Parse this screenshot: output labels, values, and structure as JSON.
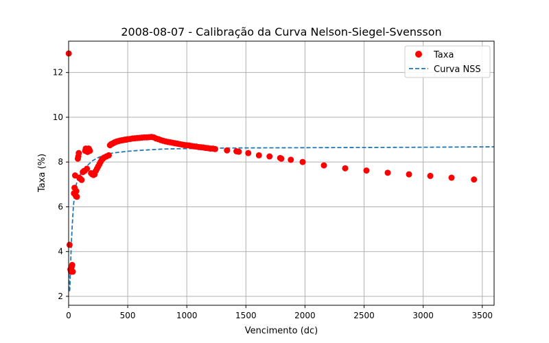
{
  "chart_data": {
    "type": "scatter",
    "title": "2008-08-07 - Calibração da Curva Nelson-Siegel-Svensson",
    "xlabel": "Vencimento (dc)",
    "ylabel": "Taxa (%)",
    "xlim": [
      0,
      3600
    ],
    "ylim": [
      1.6,
      13.4
    ],
    "xticks": [
      0,
      500,
      1000,
      1500,
      2000,
      2500,
      3000,
      3500
    ],
    "xtick_labels": [
      "0",
      "500",
      "1000",
      "1500",
      "2000",
      "2500",
      "3000",
      "3500"
    ],
    "yticks": [
      2,
      4,
      6,
      8,
      10,
      12
    ],
    "ytick_labels": [
      "2",
      "4",
      "6",
      "8",
      "10",
      "12"
    ],
    "grid": true,
    "legend": {
      "position": "top-right",
      "entries": [
        "Taxa",
        "Curva NSS"
      ]
    },
    "colors": {
      "scatter": "#ff0000",
      "curve": "#1f77b4"
    },
    "series": [
      {
        "name": "Taxa",
        "kind": "scatter",
        "x": [
          1,
          8,
          15,
          20,
          25,
          30,
          35,
          45,
          50,
          55,
          60,
          65,
          70,
          78,
          82,
          86,
          90,
          100,
          110,
          120,
          130,
          135,
          140,
          145,
          150,
          155,
          160,
          165,
          170,
          175,
          180,
          190,
          200,
          210,
          215,
          220,
          230,
          240,
          250,
          260,
          270,
          280,
          290,
          300,
          320,
          340,
          350,
          360,
          370,
          380,
          390,
          400,
          410,
          420,
          430,
          440,
          450,
          460,
          470,
          480,
          490,
          500,
          520,
          540,
          560,
          580,
          600,
          620,
          640,
          660,
          680,
          700,
          720,
          740,
          760,
          780,
          800,
          820,
          840,
          860,
          880,
          900,
          920,
          940,
          960,
          980,
          1000,
          1020,
          1040,
          1060,
          1080,
          1100,
          1120,
          1140,
          1160,
          1180,
          1200,
          1220,
          1240,
          1340,
          1420,
          1440,
          1520,
          1610,
          1700,
          1790,
          1800,
          1880,
          1980,
          2160,
          2340,
          2520,
          2700,
          2880,
          3060,
          3240,
          3430
        ],
        "y": [
          12.85,
          4.3,
          3.2,
          3.1,
          3.3,
          3.4,
          3.1,
          6.6,
          6.85,
          7.4,
          6.5,
          6.7,
          6.45,
          8.15,
          8.25,
          8.4,
          7.3,
          7.25,
          7.2,
          7.55,
          7.6,
          7.6,
          8.5,
          8.6,
          8.55,
          7.7,
          8.45,
          8.5,
          8.6,
          8.55,
          8.5,
          7.5,
          7.45,
          7.42,
          7.5,
          7.45,
          7.6,
          7.7,
          7.8,
          7.9,
          8.0,
          8.1,
          8.15,
          8.2,
          8.25,
          8.3,
          8.75,
          8.8,
          8.82,
          8.85,
          8.88,
          8.9,
          8.92,
          8.93,
          8.95,
          8.96,
          8.97,
          8.98,
          8.99,
          9.0,
          9.0,
          9.02,
          9.03,
          9.05,
          9.06,
          9.07,
          9.08,
          9.09,
          9.1,
          9.1,
          9.11,
          9.12,
          9.1,
          9.05,
          9.02,
          8.98,
          8.95,
          8.92,
          8.9,
          8.88,
          8.86,
          8.84,
          8.82,
          8.8,
          8.78,
          8.76,
          8.75,
          8.74,
          8.72,
          8.7,
          8.69,
          8.67,
          8.66,
          8.65,
          8.63,
          8.62,
          8.6,
          8.6,
          8.58,
          8.52,
          8.48,
          8.46,
          8.4,
          8.3,
          8.25,
          8.18,
          8.15,
          8.1,
          8.0,
          7.85,
          7.72,
          7.62,
          7.52,
          7.45,
          7.38,
          7.3,
          7.22
        ]
      },
      {
        "name": "Curva NSS",
        "kind": "line",
        "style": "dashed",
        "x": [
          1,
          5,
          10,
          15,
          20,
          25,
          30,
          40,
          50,
          60,
          70,
          80,
          100,
          120,
          150,
          200,
          250,
          300,
          350,
          400,
          500,
          600,
          700,
          800,
          1000,
          1200,
          1500,
          2000,
          2500,
          3000,
          3600
        ],
        "y": [
          3.0,
          2.2,
          2.3,
          3.1,
          3.9,
          4.6,
          5.1,
          6.0,
          6.5,
          6.9,
          7.1,
          7.25,
          7.45,
          7.6,
          7.8,
          8.05,
          8.2,
          8.3,
          8.38,
          8.42,
          8.48,
          8.52,
          8.55,
          8.58,
          8.6,
          8.62,
          8.63,
          8.64,
          8.65,
          8.66,
          8.68
        ]
      }
    ]
  }
}
